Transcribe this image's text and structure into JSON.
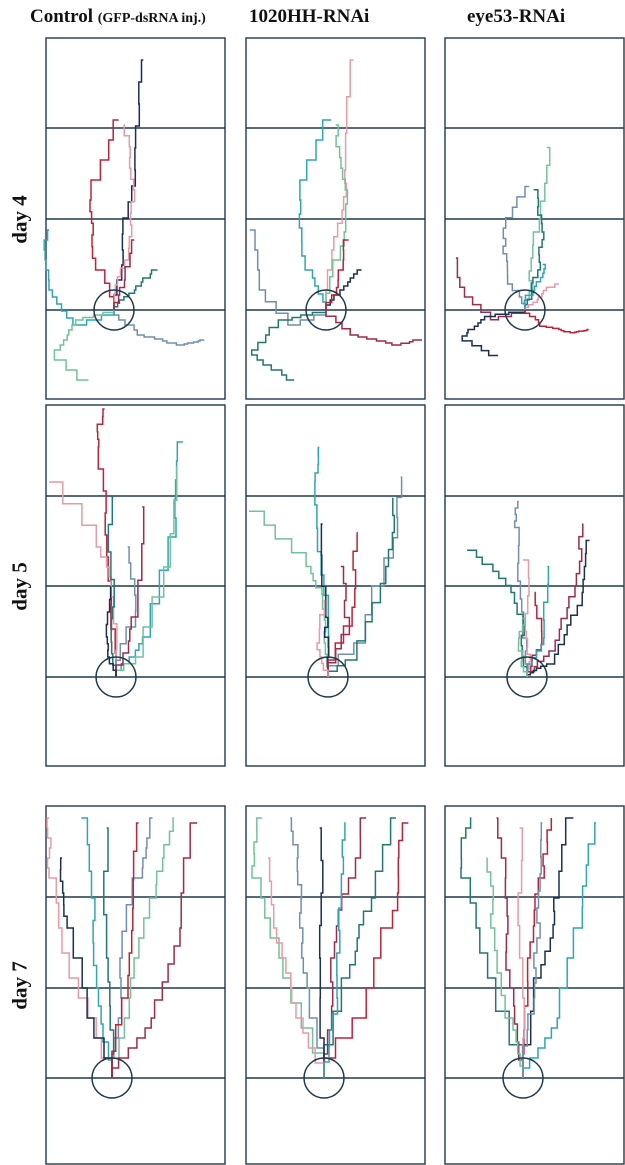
{
  "columns": [
    {
      "id": "control",
      "title": "Control",
      "subtitle": "(GFP-dsRNA inj.)"
    },
    {
      "id": "rnai-1020hh",
      "title": "1020HH-RNAi",
      "subtitle": ""
    },
    {
      "id": "rnai-eye53",
      "title": "eye53-RNAi",
      "subtitle": ""
    }
  ],
  "rows": [
    {
      "id": "day4",
      "label": "day 4"
    },
    {
      "id": "day5",
      "label": "day 5"
    },
    {
      "id": "day7",
      "label": "day 7"
    }
  ],
  "colors": {
    "frame": "#1f3a4a",
    "grid": "#1f3a4a",
    "circle": "#1f3a4a",
    "track_palette": [
      "#1b2f55",
      "#c0203a",
      "#e89aa6",
      "#2aa7b8",
      "#6fc49a",
      "#6f8fb0",
      "#1f7a6e",
      "#a02a4a"
    ]
  }
}
